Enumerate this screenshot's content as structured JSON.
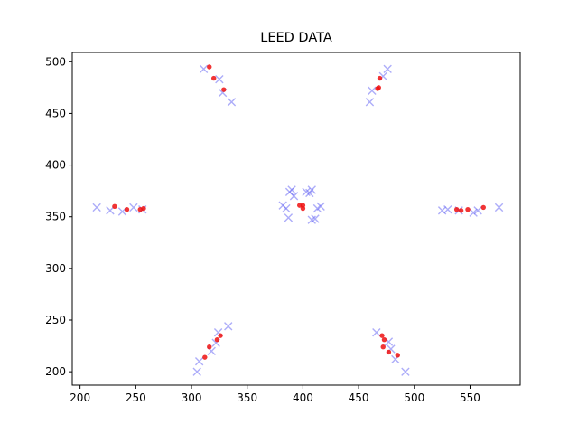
{
  "chart_data": {
    "type": "scatter",
    "title": "LEED DATA",
    "xlabel": "",
    "ylabel": "",
    "xlim": [
      193,
      595
    ],
    "ylim": [
      187,
      509
    ],
    "xticks": [
      200,
      250,
      300,
      350,
      400,
      450,
      500,
      550
    ],
    "yticks": [
      200,
      250,
      300,
      350,
      400,
      450,
      500
    ],
    "grid": false,
    "series": [
      {
        "marker": "x",
        "color": "#6a6af4",
        "points": [
          [
            311,
            493
          ],
          [
            325,
            483
          ],
          [
            328,
            470
          ],
          [
            336,
            461
          ],
          [
            476,
            493
          ],
          [
            472,
            486
          ],
          [
            462,
            472
          ],
          [
            460,
            461
          ],
          [
            215,
            359
          ],
          [
            227,
            356
          ],
          [
            238,
            355
          ],
          [
            248,
            359
          ],
          [
            256,
            357
          ],
          [
            525,
            356
          ],
          [
            530,
            357
          ],
          [
            540,
            356
          ],
          [
            553,
            354
          ],
          [
            557,
            356
          ],
          [
            576,
            359
          ],
          [
            305,
            200
          ],
          [
            307,
            210
          ],
          [
            318,
            220
          ],
          [
            322,
            228
          ],
          [
            324,
            238
          ],
          [
            333,
            244
          ],
          [
            466,
            238
          ],
          [
            477,
            229
          ],
          [
            479,
            222
          ],
          [
            483,
            212
          ],
          [
            492,
            200
          ],
          [
            382,
            361
          ],
          [
            385,
            358
          ],
          [
            387,
            349
          ],
          [
            388,
            374
          ],
          [
            390,
            376
          ],
          [
            392,
            370
          ],
          [
            403,
            374
          ],
          [
            406,
            373
          ],
          [
            408,
            376
          ],
          [
            408,
            347
          ],
          [
            411,
            348
          ],
          [
            413,
            358
          ],
          [
            416,
            360
          ]
        ]
      },
      {
        "marker": "o",
        "color": "#ee1111",
        "points": [
          [
            316,
            495
          ],
          [
            320,
            484
          ],
          [
            329,
            473
          ],
          [
            469,
            484
          ],
          [
            468,
            475
          ],
          [
            467,
            474
          ],
          [
            231,
            360
          ],
          [
            242,
            357
          ],
          [
            254,
            357
          ],
          [
            257,
            358
          ],
          [
            538,
            357
          ],
          [
            542,
            356
          ],
          [
            548,
            357
          ],
          [
            562,
            359
          ],
          [
            312,
            214
          ],
          [
            316,
            224
          ],
          [
            323,
            231
          ],
          [
            326,
            235
          ],
          [
            471,
            235
          ],
          [
            473,
            231
          ],
          [
            472,
            224
          ],
          [
            477,
            219
          ],
          [
            485,
            216
          ],
          [
            397,
            361
          ],
          [
            400,
            361
          ],
          [
            400,
            358
          ]
        ]
      }
    ]
  }
}
